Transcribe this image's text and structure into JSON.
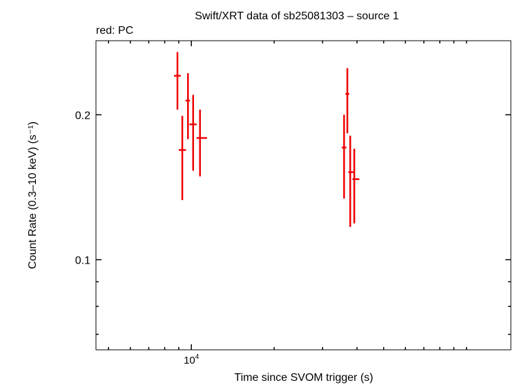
{
  "chart_data": {
    "type": "scatter",
    "title": "Swift/XRT data of sb25081303 – source 1",
    "subtitle": "red: PC",
    "xlabel": "Time since SVOM trigger (s)",
    "ylabel": "Count Rate (0.3–10 keV) (s⁻¹)",
    "x_scale": "log",
    "y_scale": "log",
    "xlim": [
      4500,
      145000
    ],
    "ylim": [
      0.065,
      0.285
    ],
    "x_ticks": [
      {
        "value": 10000,
        "base": "10",
        "exp": "4"
      }
    ],
    "y_ticks": [
      {
        "value": 0.1,
        "label": "0.1"
      },
      {
        "value": 0.2,
        "label": "0.2"
      }
    ],
    "series": [
      {
        "color": "#ee0000",
        "points": [
          {
            "x": 8900,
            "xmin": 8650,
            "xmax": 9150,
            "y": 0.241,
            "ymin": 0.205,
            "ymax": 0.27
          },
          {
            "x": 9270,
            "xmin": 9000,
            "xmax": 9560,
            "y": 0.169,
            "ymin": 0.133,
            "ymax": 0.199
          },
          {
            "x": 9720,
            "xmin": 9520,
            "xmax": 9880,
            "y": 0.214,
            "ymin": 0.178,
            "ymax": 0.244
          },
          {
            "x": 10150,
            "xmin": 9840,
            "xmax": 10450,
            "y": 0.191,
            "ymin": 0.153,
            "ymax": 0.22
          },
          {
            "x": 10750,
            "xmin": 10450,
            "xmax": 11400,
            "y": 0.179,
            "ymin": 0.149,
            "ymax": 0.205
          },
          {
            "x": 35900,
            "xmin": 35200,
            "xmax": 36600,
            "y": 0.171,
            "ymin": 0.134,
            "ymax": 0.2
          },
          {
            "x": 36900,
            "xmin": 36300,
            "xmax": 37500,
            "y": 0.221,
            "ymin": 0.183,
            "ymax": 0.25
          },
          {
            "x": 37800,
            "xmin": 37200,
            "xmax": 38800,
            "y": 0.152,
            "ymin": 0.117,
            "ymax": 0.181
          },
          {
            "x": 39100,
            "xmin": 38500,
            "xmax": 40800,
            "y": 0.147,
            "ymin": 0.119,
            "ymax": 0.17
          }
        ]
      }
    ]
  }
}
